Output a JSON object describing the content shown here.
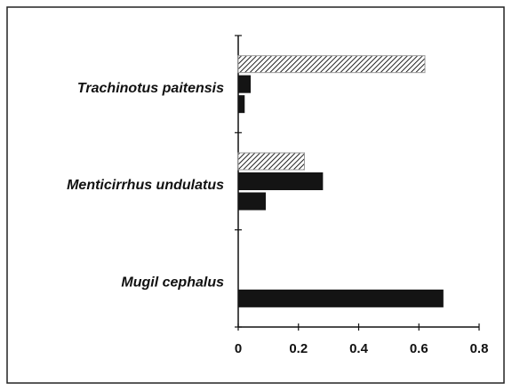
{
  "chart_data": {
    "type": "barh",
    "categories": [
      "Trachinotus paitensis",
      "Menticirrhus undulatus",
      "Mugil cephalus"
    ],
    "series": [
      {
        "color": "#9a9a9a",
        "pattern": "hatch",
        "values": [
          0.62,
          0.22,
          0
        ]
      },
      {
        "color": "#141414",
        "values": [
          0.04,
          0.28,
          0
        ]
      },
      {
        "color": "#141414",
        "values": [
          0.02,
          0.09,
          0.68
        ]
      }
    ],
    "xlim": [
      0,
      0.8
    ],
    "xticks": [
      0,
      0.2,
      0.4,
      0.6,
      0.8
    ]
  }
}
